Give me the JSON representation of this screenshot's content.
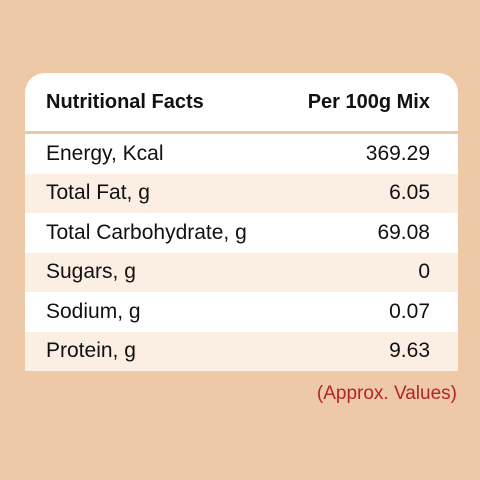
{
  "table": {
    "header": [
      "Nutritional Facts",
      "Per 100g Mix"
    ],
    "rows": [
      [
        "Energy, Kcal",
        "369.29"
      ],
      [
        "Total Fat, g",
        "6.05"
      ],
      [
        "Total Carbohydrate, g",
        "69.08"
      ],
      [
        "Sugars, g",
        "0"
      ],
      [
        "Sodium, g",
        "0.07"
      ],
      [
        "Protein, g",
        "9.63"
      ]
    ]
  },
  "note": "(Approx. Values)"
}
